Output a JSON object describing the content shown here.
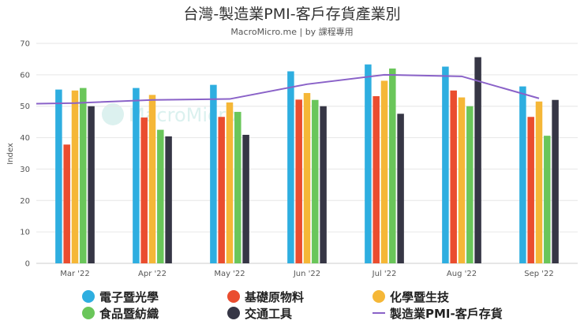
{
  "chart_data": {
    "type": "bar",
    "title": "台灣-製造業PMI-客戶存貨產業別",
    "subtitle": "MacroMicro.me | by 課程專用",
    "watermark": "MacroMicro",
    "ylabel": "Index",
    "xlabel": "",
    "ylim": [
      0,
      70
    ],
    "yticks": [
      0,
      10,
      20,
      30,
      40,
      50,
      60,
      70
    ],
    "grid": true,
    "categories": [
      "Mar '22",
      "Apr '22",
      "May '22",
      "Jun '22",
      "Jul '22",
      "Aug '22",
      "Sep '22"
    ],
    "series": [
      {
        "name": "電子暨光學",
        "type": "bar",
        "color": "#2eaee0",
        "values": [
          55.3,
          55.8,
          56.8,
          61.1,
          63.3,
          62.6,
          56.3
        ]
      },
      {
        "name": "基礎原物料",
        "type": "bar",
        "color": "#ea4d2f",
        "values": [
          37.8,
          46.4,
          46.6,
          52.1,
          53.2,
          55.0,
          46.6
        ]
      },
      {
        "name": "化學暨生技",
        "type": "bar",
        "color": "#f5b737",
        "values": [
          55.0,
          53.6,
          51.2,
          54.2,
          58.1,
          52.8,
          51.5
        ]
      },
      {
        "name": "食品暨紡織",
        "type": "bar",
        "color": "#6ac65a",
        "values": [
          55.8,
          42.5,
          48.2,
          52.0,
          62.0,
          50.0,
          40.6
        ]
      },
      {
        "name": "交通工具",
        "type": "bar",
        "color": "#363645",
        "values": [
          50.0,
          40.4,
          40.9,
          50.0,
          47.6,
          65.6,
          52.0
        ]
      },
      {
        "name": "製造業PMI-客戶存貨",
        "type": "line",
        "color": "#8a62c8",
        "values": [
          51.0,
          52.0,
          52.3,
          57.0,
          60.0,
          59.5,
          52.5
        ]
      }
    ],
    "legend_position": "bottom"
  }
}
